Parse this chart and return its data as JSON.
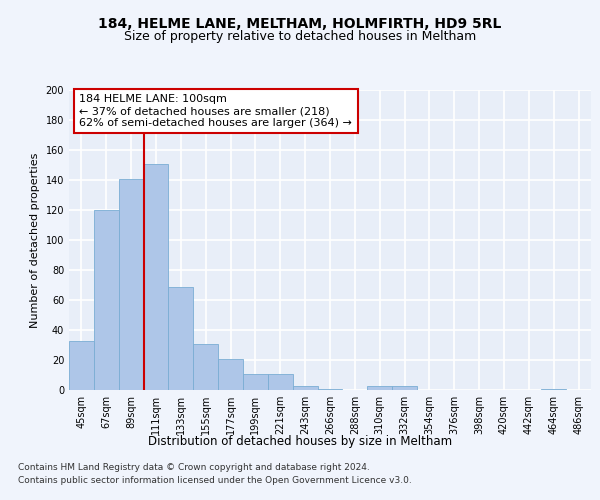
{
  "title_line1": "184, HELME LANE, MELTHAM, HOLMFIRTH, HD9 5RL",
  "title_line2": "Size of property relative to detached houses in Meltham",
  "xlabel": "Distribution of detached houses by size in Meltham",
  "ylabel": "Number of detached properties",
  "categories": [
    "45sqm",
    "67sqm",
    "89sqm",
    "111sqm",
    "133sqm",
    "155sqm",
    "177sqm",
    "199sqm",
    "221sqm",
    "243sqm",
    "266sqm",
    "288sqm",
    "310sqm",
    "332sqm",
    "354sqm",
    "376sqm",
    "398sqm",
    "420sqm",
    "442sqm",
    "464sqm",
    "486sqm"
  ],
  "values": [
    33,
    120,
    141,
    151,
    69,
    31,
    21,
    11,
    11,
    3,
    1,
    0,
    3,
    3,
    0,
    0,
    0,
    0,
    0,
    1,
    0
  ],
  "bar_color": "#aec6e8",
  "bar_edgecolor": "#7aadd4",
  "vline_color": "#cc0000",
  "vline_x": 2.5,
  "annotation_text": "184 HELME LANE: 100sqm\n← 37% of detached houses are smaller (218)\n62% of semi-detached houses are larger (364) →",
  "annotation_box_edgecolor": "#cc0000",
  "annotation_box_facecolor": "#ffffff",
  "ylim": [
    0,
    200
  ],
  "yticks": [
    0,
    20,
    40,
    60,
    80,
    100,
    120,
    140,
    160,
    180,
    200
  ],
  "footer_line1": "Contains HM Land Registry data © Crown copyright and database right 2024.",
  "footer_line2": "Contains public sector information licensed under the Open Government Licence v3.0.",
  "background_color": "#e8eef8",
  "grid_color": "#ffffff",
  "fig_facecolor": "#f0f4fc",
  "title_fontsize": 10,
  "subtitle_fontsize": 9,
  "xlabel_fontsize": 8.5,
  "ylabel_fontsize": 8,
  "tick_fontsize": 7,
  "annotation_fontsize": 8,
  "footer_fontsize": 6.5
}
